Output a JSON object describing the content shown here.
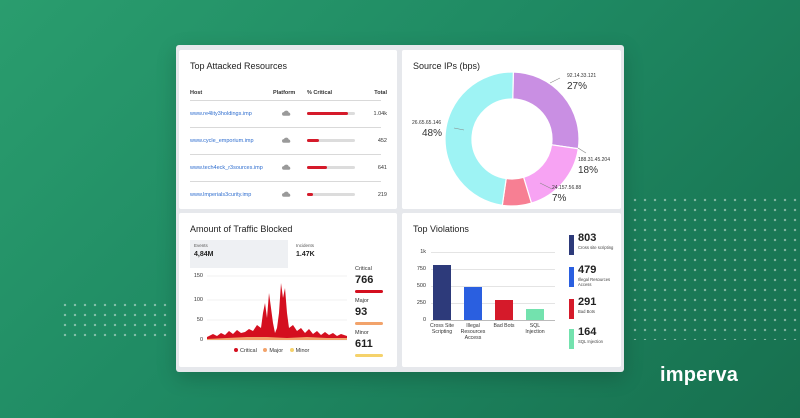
{
  "top_attacked": {
    "title": "Top Attacked Resources",
    "columns": [
      "Host",
      "Platform",
      "% Critical",
      "Total"
    ],
    "rows": [
      {
        "host": "www.re4lity3holdings.imp",
        "critical_pct": 0.85,
        "total": "1.04k"
      },
      {
        "host": "www.cycle_emporium.imp",
        "critical_pct": 0.25,
        "total": "452"
      },
      {
        "host": "www.tech4eck_r3sources.imp",
        "critical_pct": 0.42,
        "total": "641"
      },
      {
        "host": "www.lmperials3curity.imp",
        "critical_pct": 0.12,
        "total": "219"
      }
    ]
  },
  "source_ips": {
    "title": "Source IPs (bps)",
    "slices": [
      {
        "ip": "92.14.33.121",
        "pct": "27%",
        "value": 27,
        "color": "#c98fe3"
      },
      {
        "ip": "188.31.45.204",
        "pct": "18%",
        "value": 18,
        "color": "#f7a3f3"
      },
      {
        "ip": "24.157.56.88",
        "pct": "7%",
        "value": 7,
        "color": "#f77f93"
      },
      {
        "ip": "26.65.65.146",
        "pct": "48%",
        "value": 48,
        "color": "#9ef3f4"
      }
    ]
  },
  "traffic": {
    "title": "Amount of Traffic Blocked",
    "events_label": "Events",
    "events_value": "4,84M",
    "incidents_label": "Incidents",
    "incidents_value": "1.47K",
    "y_ticks": [
      "150",
      "100",
      "50",
      "0"
    ],
    "critical_label": "Critical",
    "critical_value": "766",
    "major_label": "Major",
    "major_value": "93",
    "minor_label": "Minor",
    "minor_value": "611",
    "legend": [
      "Critical",
      "Major",
      "Minor"
    ],
    "colors": {
      "critical": "#d40f1f",
      "major": "#f2a36b",
      "minor": "#f5d26b"
    }
  },
  "violations": {
    "title": "Top Violations",
    "y_ticks": [
      "1k",
      "750",
      "500",
      "250",
      "0"
    ],
    "categories": [
      "Cross Site Scripting",
      "Illegal Resources Access",
      "Bad Bots",
      "SQL Injection"
    ],
    "values": [
      803,
      479,
      291,
      164
    ],
    "colors": [
      "#2d3a7a",
      "#2a5fe0",
      "#d51a2a",
      "#73e2ae"
    ],
    "legend": [
      {
        "value": "803",
        "label": "Cross site scripting"
      },
      {
        "value": "479",
        "label": "Illegal Resources Access"
      },
      {
        "value": "291",
        "label": "Bad Bots"
      },
      {
        "value": "164",
        "label": "SQL Injection"
      }
    ]
  },
  "brand": {
    "logo_text": "imperva"
  }
}
